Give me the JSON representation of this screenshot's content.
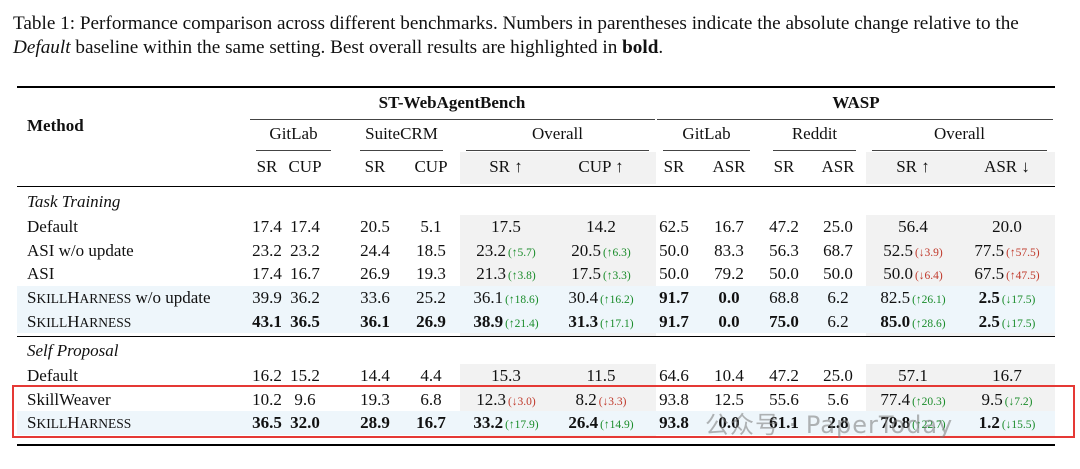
{
  "caption": {
    "prefix": "Table 1: Performance comparison across different benchmarks. Numbers in parentheses indicate the absolute change relative to the ",
    "italic": "Default",
    "middle": " baseline within the same setting. Best overall results are highlighted in ",
    "bold": "bold",
    "suffix": "."
  },
  "headers": {
    "method": "Method",
    "group1": "ST-WebAgentBench",
    "group2": "WASP",
    "sub": [
      "GitLab",
      "SuiteCRM",
      "Overall",
      "GitLab",
      "Reddit",
      "Overall"
    ],
    "cols": [
      "SR",
      "CUP",
      "SR",
      "CUP",
      "SR ↑",
      "CUP ↑",
      "SR",
      "ASR",
      "SR",
      "ASR",
      "SR ↑",
      "ASR ↓"
    ]
  },
  "sections": [
    {
      "title": "Task Training",
      "rows": [
        {
          "method": "Default",
          "sc": false,
          "cells": [
            {
              "v": "17.4"
            },
            {
              "v": "17.4"
            },
            {
              "v": "20.5"
            },
            {
              "v": "5.1"
            },
            {
              "v": "17.5"
            },
            {
              "v": "14.2"
            },
            {
              "v": "62.5"
            },
            {
              "v": "16.7"
            },
            {
              "v": "47.2"
            },
            {
              "v": "25.0"
            },
            {
              "v": "56.4"
            },
            {
              "v": "20.0"
            }
          ]
        },
        {
          "method": "ASI w/o update",
          "sc": false,
          "cells": [
            {
              "v": "23.2"
            },
            {
              "v": "23.2"
            },
            {
              "v": "24.4"
            },
            {
              "v": "18.5"
            },
            {
              "v": "23.2",
              "d": "(↑5.7)",
              "dir": "up"
            },
            {
              "v": "20.5",
              "d": "(↑6.3)",
              "dir": "up"
            },
            {
              "v": "50.0"
            },
            {
              "v": "83.3"
            },
            {
              "v": "56.3"
            },
            {
              "v": "68.7"
            },
            {
              "v": "52.5",
              "d": "(↓3.9)",
              "dir": "down"
            },
            {
              "v": "77.5",
              "d": "(↑57.5)",
              "dir": "down"
            }
          ]
        },
        {
          "method": "ASI",
          "sc": false,
          "cells": [
            {
              "v": "17.4"
            },
            {
              "v": "16.7"
            },
            {
              "v": "26.9"
            },
            {
              "v": "19.3"
            },
            {
              "v": "21.3",
              "d": "(↑3.8)",
              "dir": "up"
            },
            {
              "v": "17.5",
              "d": "(↑3.3)",
              "dir": "up"
            },
            {
              "v": "50.0"
            },
            {
              "v": "79.2"
            },
            {
              "v": "50.0"
            },
            {
              "v": "50.0"
            },
            {
              "v": "50.0",
              "d": "(↓6.4)",
              "dir": "down"
            },
            {
              "v": "67.5",
              "d": "(↑47.5)",
              "dir": "down"
            }
          ]
        },
        {
          "method": "SkillHarness",
          "method_suffix": " w/o update",
          "sc": true,
          "shade": true,
          "cells": [
            {
              "v": "39.9"
            },
            {
              "v": "36.2"
            },
            {
              "v": "33.6"
            },
            {
              "v": "25.2"
            },
            {
              "v": "36.1",
              "d": "(↑18.6)",
              "dir": "up"
            },
            {
              "v": "30.4",
              "d": "(↑16.2)",
              "dir": "up"
            },
            {
              "v": "91.7",
              "b": true
            },
            {
              "v": "0.0",
              "b": true
            },
            {
              "v": "68.8"
            },
            {
              "v": "6.2"
            },
            {
              "v": "82.5",
              "d": "(↑26.1)",
              "dir": "up"
            },
            {
              "v": "2.5",
              "b": true,
              "d": "(↓17.5)",
              "dir": "up"
            }
          ]
        },
        {
          "method": "SkillHarness",
          "method_suffix": "",
          "sc": true,
          "shade": true,
          "cells": [
            {
              "v": "43.1",
              "b": true
            },
            {
              "v": "36.5",
              "b": true
            },
            {
              "v": "36.1",
              "b": true
            },
            {
              "v": "26.9",
              "b": true
            },
            {
              "v": "38.9",
              "b": true,
              "d": "(↑21.4)",
              "dir": "up"
            },
            {
              "v": "31.3",
              "b": true,
              "d": "(↑17.1)",
              "dir": "up"
            },
            {
              "v": "91.7",
              "b": true
            },
            {
              "v": "0.0",
              "b": true
            },
            {
              "v": "75.0",
              "b": true
            },
            {
              "v": "6.2"
            },
            {
              "v": "85.0",
              "b": true,
              "d": "(↑28.6)",
              "dir": "up"
            },
            {
              "v": "2.5",
              "b": true,
              "d": "(↓17.5)",
              "dir": "up"
            }
          ]
        }
      ]
    },
    {
      "title": "Self Proposal",
      "rows": [
        {
          "method": "Default",
          "sc": false,
          "cells": [
            {
              "v": "16.2"
            },
            {
              "v": "15.2"
            },
            {
              "v": "14.4"
            },
            {
              "v": "4.4"
            },
            {
              "v": "15.3"
            },
            {
              "v": "11.5"
            },
            {
              "v": "64.6"
            },
            {
              "v": "10.4"
            },
            {
              "v": "47.2"
            },
            {
              "v": "25.0"
            },
            {
              "v": "57.1"
            },
            {
              "v": "16.7"
            }
          ]
        },
        {
          "method": "SkillWeaver",
          "sc": false,
          "cells": [
            {
              "v": "10.2"
            },
            {
              "v": "9.6"
            },
            {
              "v": "19.3"
            },
            {
              "v": "6.8"
            },
            {
              "v": "12.3",
              "d": "(↓3.0)",
              "dir": "down"
            },
            {
              "v": "8.2",
              "d": "(↓3.3)",
              "dir": "down"
            },
            {
              "v": "93.8"
            },
            {
              "v": "12.5"
            },
            {
              "v": "55.6"
            },
            {
              "v": "5.6"
            },
            {
              "v": "77.4",
              "d": "(↑20.3)",
              "dir": "up"
            },
            {
              "v": "9.5",
              "d": "(↓7.2)",
              "dir": "up"
            }
          ]
        },
        {
          "method": "SkillHarness",
          "method_suffix": "",
          "sc": true,
          "shade": true,
          "cells": [
            {
              "v": "36.5",
              "b": true
            },
            {
              "v": "32.0",
              "b": true
            },
            {
              "v": "28.9",
              "b": true
            },
            {
              "v": "16.7",
              "b": true
            },
            {
              "v": "33.2",
              "b": true,
              "d": "(↑17.9)",
              "dir": "up"
            },
            {
              "v": "26.4",
              "b": true,
              "d": "(↑14.9)",
              "dir": "up"
            },
            {
              "v": "93.8",
              "b": true
            },
            {
              "v": "0.0",
              "b": true
            },
            {
              "v": "61.1",
              "b": true
            },
            {
              "v": "2.8",
              "b": true
            },
            {
              "v": "79.8",
              "b": true,
              "d": "(↑22.7)",
              "dir": "up"
            },
            {
              "v": "1.2",
              "b": true,
              "d": "(↓15.5)",
              "dir": "up"
            }
          ]
        }
      ]
    }
  ],
  "watermark": "公众号 · PaperToday",
  "colors": {
    "shade_row": "#eef6fb",
    "shade_col": "#f2f2f2",
    "highlight_box": "#e53935",
    "up": "#1a8c2a",
    "down": "#c0392b"
  }
}
